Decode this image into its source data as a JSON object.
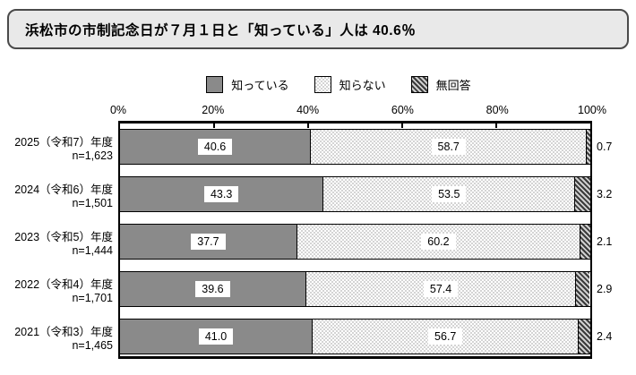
{
  "title": "浜松市の市制記念日が７月１日と「知っている」人は 40.6％",
  "colors": {
    "title_box_bg": "#e9e9e9",
    "title_box_border": "#4a4a4a",
    "bar_solid_gray": "#8a8a8a",
    "dots_pattern_gray": "#d4d4d4",
    "hatch_dark": "#3a3a3a",
    "frame_border": "#000000"
  },
  "chart_data": {
    "type": "bar",
    "orientation": "horizontal",
    "stacked": true,
    "xlim": [
      0,
      100
    ],
    "axis_ticks": [
      {
        "label": "0%",
        "pos": 0
      },
      {
        "label": "20%",
        "pos": 20
      },
      {
        "label": "40%",
        "pos": 40
      },
      {
        "label": "60%",
        "pos": 60
      },
      {
        "label": "80%",
        "pos": 80
      },
      {
        "label": "100%",
        "pos": 100
      }
    ],
    "legend": [
      {
        "name": "知っている",
        "pattern": "solid"
      },
      {
        "name": "知らない",
        "pattern": "dots"
      },
      {
        "name": "無回答",
        "pattern": "hatch"
      }
    ],
    "categories": [
      {
        "label": "2025（令和7）年度",
        "n": "n=1,623"
      },
      {
        "label": "2024（令和6）年度",
        "n": "n=1,501"
      },
      {
        "label": "2023（令和5）年度",
        "n": "n=1,444"
      },
      {
        "label": "2022（令和4）年度",
        "n": "n=1,701"
      },
      {
        "label": "2021（令和3）年度",
        "n": "n=1,465"
      }
    ],
    "series": [
      {
        "name": "知っている",
        "values": [
          40.6,
          43.3,
          37.7,
          39.6,
          41.0
        ]
      },
      {
        "name": "知らない",
        "values": [
          58.7,
          53.5,
          60.2,
          57.4,
          56.7
        ]
      },
      {
        "name": "無回答",
        "values": [
          0.7,
          3.2,
          2.1,
          2.9,
          2.4
        ]
      }
    ]
  }
}
